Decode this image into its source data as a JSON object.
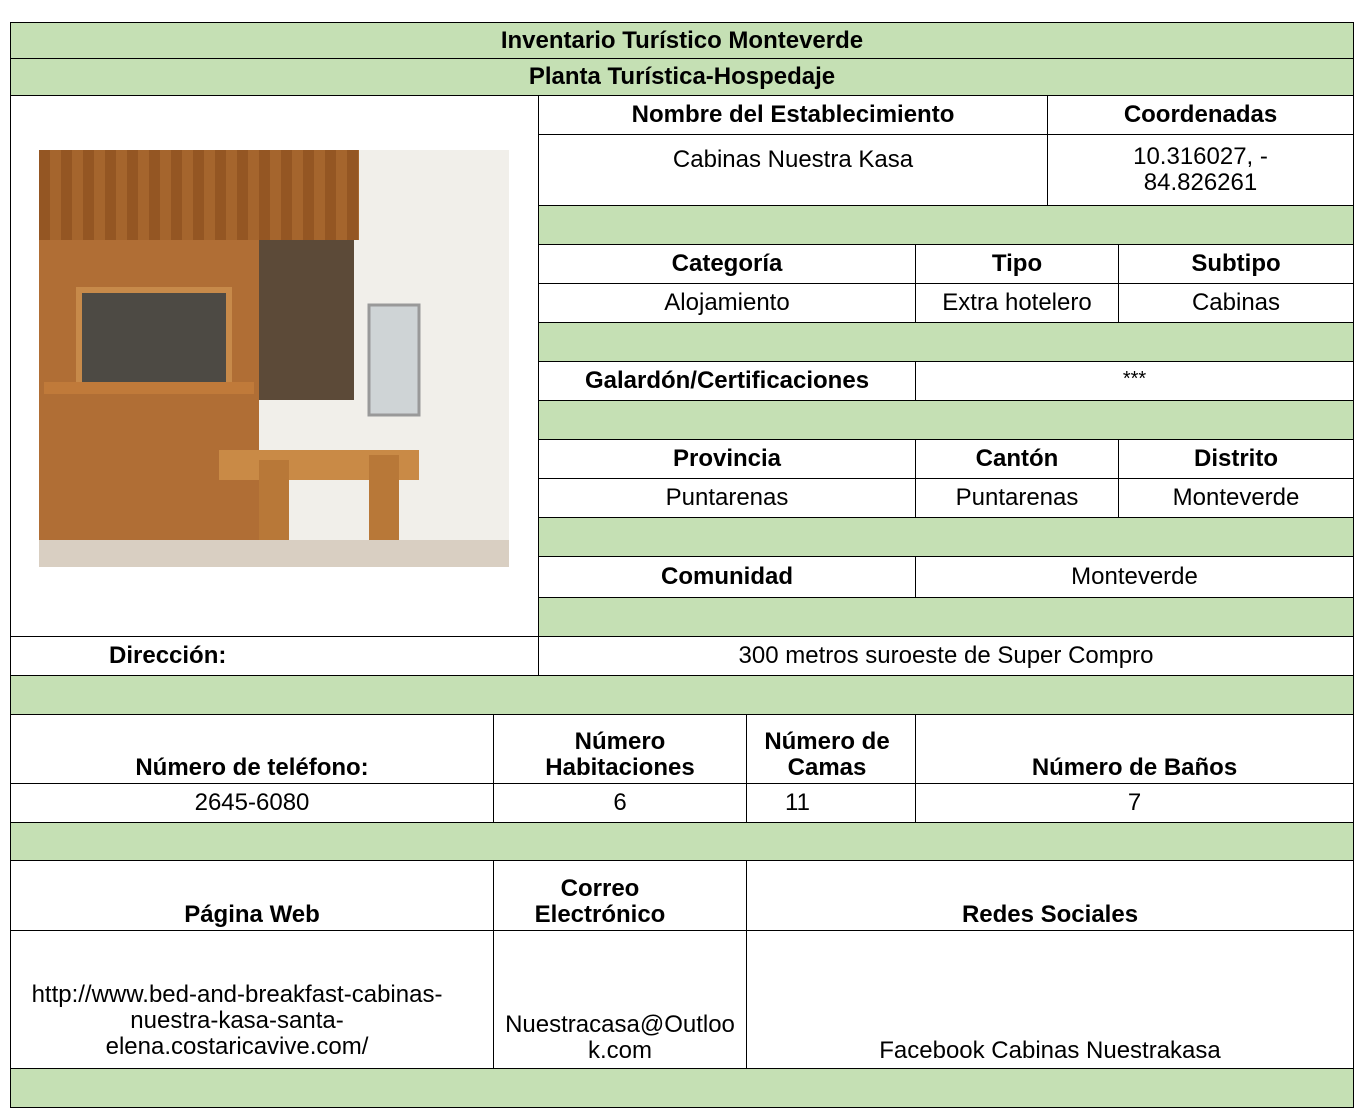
{
  "header": {
    "title": "Inventario Turístico Monteverde",
    "subtitle": "Planta Turística-Hospedaje"
  },
  "fields": {
    "nombre_label": "Nombre del Establecimiento",
    "coordenadas_label": "Coordenadas",
    "nombre": "Cabinas Nuestra Kasa",
    "coordenadas": "10.316027, - 84.826261",
    "categoria_label": "Categoría",
    "tipo_label": "Tipo",
    "subtipo_label": "Subtipo",
    "categoria": "Alojamiento",
    "tipo": "Extra hotelero",
    "subtipo": "Cabinas",
    "galardon_label": "Galardón/Certificaciones",
    "galardon": "***",
    "provincia_label": "Provincia",
    "canton_label": "Cantón",
    "distrito_label": "Distrito",
    "provincia": "Puntarenas",
    "canton": "Puntarenas",
    "distrito": "Monteverde",
    "comunidad_label": "Comunidad",
    "comunidad": "Monteverde",
    "direccion_label": "Dirección:",
    "direccion": "300 metros suroeste de Super Compro",
    "telefono_label": "Número de teléfono:",
    "habitaciones_label": "Número Habitaciones",
    "camas_label": "Número de Camas",
    "banos_label": "Número de Baños",
    "telefono": "2645-6080",
    "habitaciones": "6",
    "camas": "11",
    "banos": "7",
    "web_label": "Página Web",
    "correo_label": "Correo Electrónico",
    "redes_label": "Redes Sociales",
    "web": "http://www.bed-and-breakfast-cabinas-nuestra-kasa-santa-elena.costaricavive.com/",
    "correo": "Nuestracasa@Outlook.com",
    "redes": "Facebook Cabinas Nuestrakasa"
  }
}
